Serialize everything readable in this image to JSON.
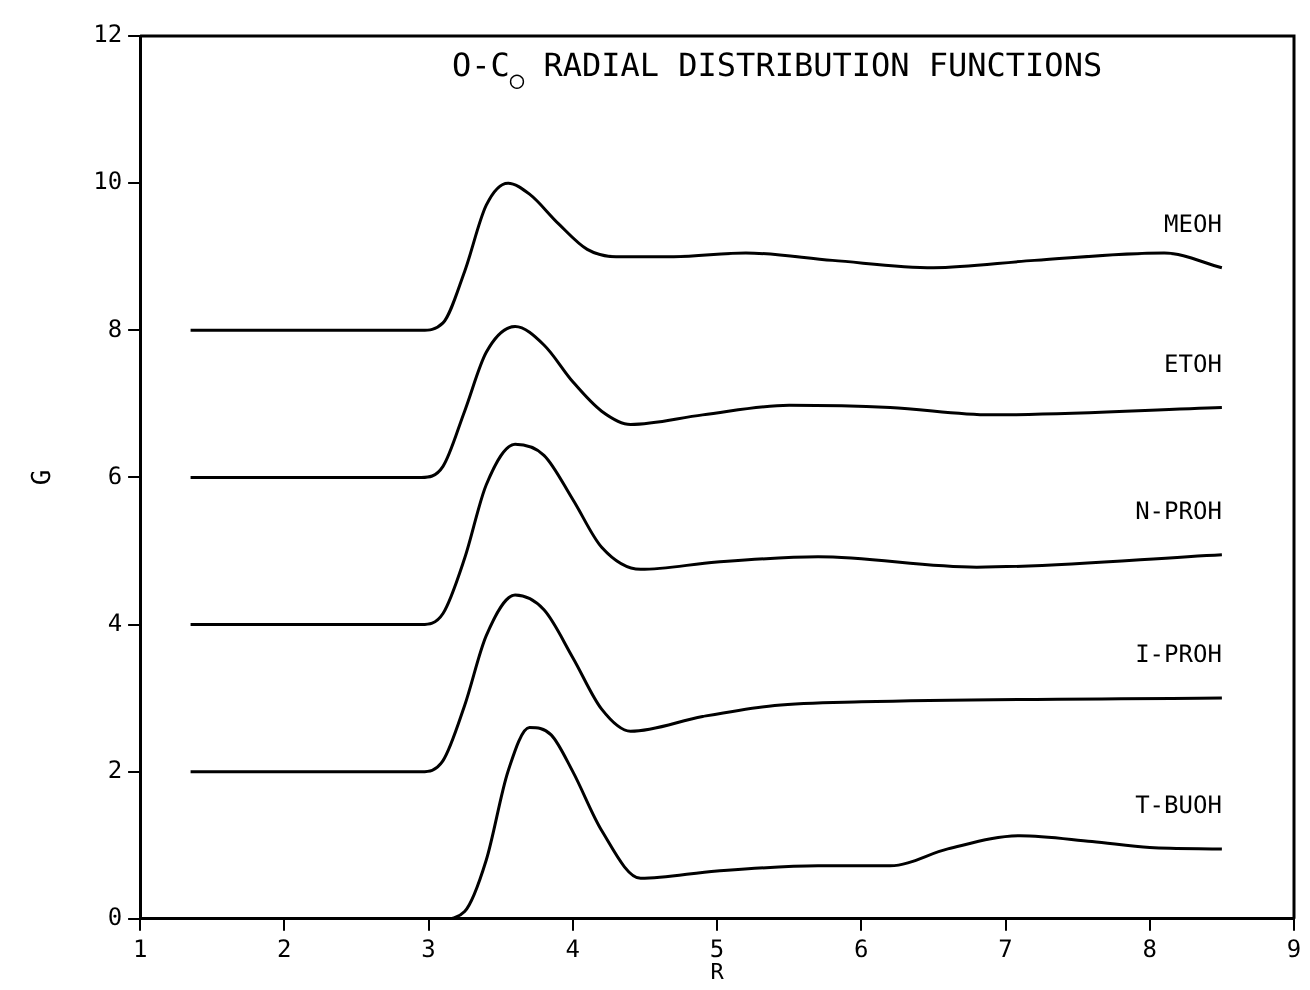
{
  "chart_data": {
    "type": "line",
    "title": "O-C$_{○}$ RADIAL DISTRIBUTION FUNCTIONS",
    "xlabel": "R",
    "ylabel": "G",
    "xlim": [
      1,
      9
    ],
    "xticks": [
      1,
      2,
      3,
      4,
      5,
      6,
      7,
      8,
      9
    ],
    "ylim": [
      0,
      12
    ],
    "yticks": [
      0,
      2,
      4,
      6,
      8,
      10,
      12
    ],
    "grid": false,
    "legend": false,
    "marker": "none",
    "line_style": "solid",
    "series": [
      {
        "name": "MEOH",
        "color": "#000000",
        "x": [
          1.35,
          2.95,
          3.1,
          3.25,
          3.4,
          3.55,
          3.7,
          3.9,
          4.1,
          4.3,
          4.7,
          5.2,
          5.8,
          6.5,
          7.2,
          8.1,
          8.5
        ],
        "values": [
          8,
          8,
          8.1,
          8.8,
          9.7,
          10.0,
          9.85,
          9.45,
          9.1,
          9.0,
          9.0,
          9.05,
          8.95,
          8.85,
          8.95,
          9.05,
          8.85
        ]
      },
      {
        "name": "ETOH",
        "color": "#000000",
        "x": [
          1.35,
          2.95,
          3.1,
          3.25,
          3.4,
          3.6,
          3.8,
          4.0,
          4.2,
          4.4,
          4.9,
          5.5,
          6.2,
          6.9,
          8.5
        ],
        "values": [
          6,
          6,
          6.15,
          6.9,
          7.7,
          8.05,
          7.8,
          7.3,
          6.9,
          6.72,
          6.85,
          6.98,
          6.95,
          6.85,
          6.95
        ]
      },
      {
        "name": "N-PROH",
        "color": "#000000",
        "x": [
          1.35,
          2.95,
          3.1,
          3.25,
          3.4,
          3.6,
          3.8,
          4.0,
          4.2,
          4.47,
          5.0,
          5.7,
          6.8,
          8.5
        ],
        "values": [
          4,
          4,
          4.15,
          4.9,
          5.9,
          6.45,
          6.3,
          5.7,
          5.05,
          4.75,
          4.85,
          4.92,
          4.78,
          4.95
        ]
      },
      {
        "name": "I-PROH",
        "color": "#000000",
        "x": [
          1.35,
          2.95,
          3.1,
          3.25,
          3.4,
          3.6,
          3.8,
          4.0,
          4.2,
          4.4,
          4.9,
          5.4,
          6.0,
          8.5
        ],
        "values": [
          2,
          2,
          2.15,
          2.9,
          3.85,
          4.4,
          4.2,
          3.55,
          2.85,
          2.55,
          2.75,
          2.9,
          2.95,
          3.0
        ]
      },
      {
        "name": "T-BUOH",
        "color": "#000000",
        "x": [
          1.35,
          3.1,
          3.25,
          3.4,
          3.55,
          3.7,
          3.85,
          4.0,
          4.2,
          4.47,
          5.0,
          5.7,
          6.2,
          6.6,
          7.1,
          7.6,
          8.0,
          8.5
        ],
        "values": [
          0,
          0,
          0.1,
          0.8,
          2.0,
          2.6,
          2.5,
          2.0,
          1.2,
          0.55,
          0.65,
          0.72,
          0.72,
          0.95,
          1.13,
          1.05,
          0.97,
          0.95
        ]
      }
    ]
  }
}
